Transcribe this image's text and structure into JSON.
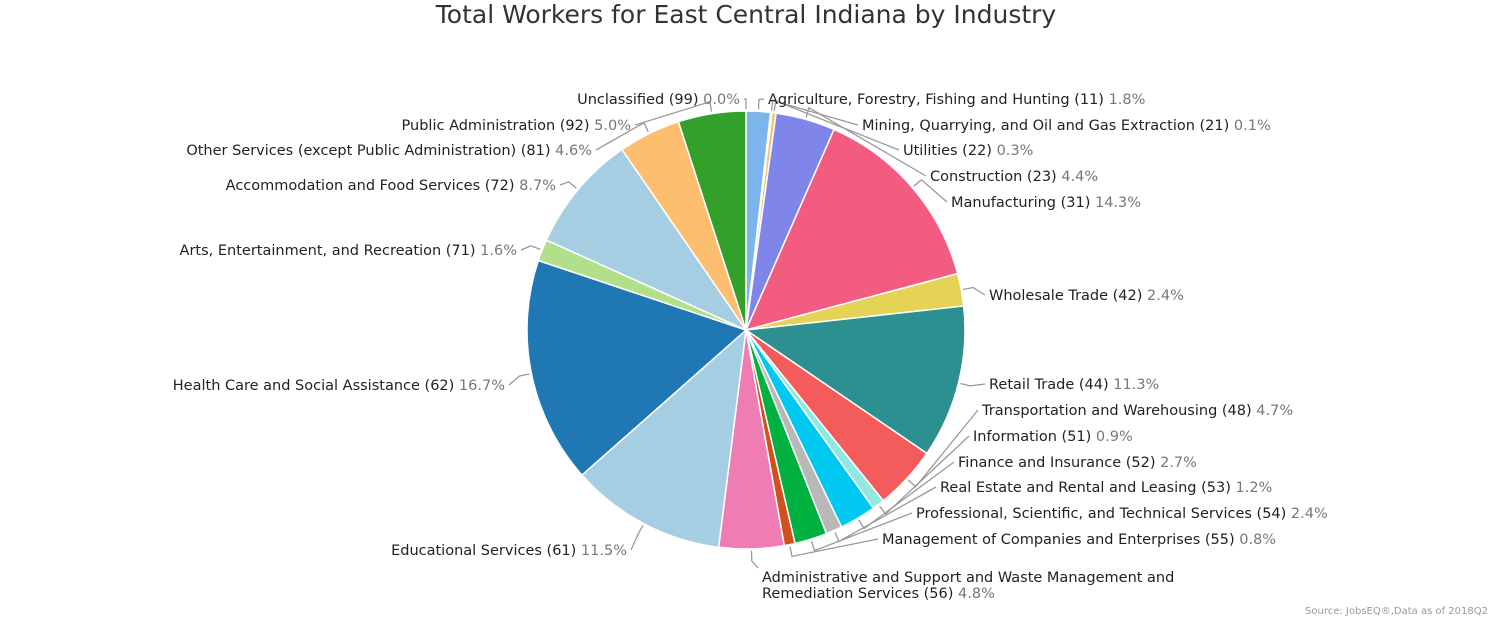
{
  "chart_data": {
    "type": "pie",
    "title": "Total Workers for East Central Indiana by Industry",
    "source": "Source: JobsEQ®,Data as of 2018Q2",
    "slices": [
      {
        "label": "Agriculture, Forestry, Fishing and Hunting (11)",
        "pct": "1.8%",
        "value": 1.8,
        "color": "#7cb5ec"
      },
      {
        "label": "Mining, Quarrying, and Oil and Gas Extraction (21)",
        "pct": "0.1%",
        "value": 0.1,
        "color": "#f7a35c"
      },
      {
        "label": "Utilities (22)",
        "pct": "0.3%",
        "value": 0.3,
        "color": "#f7c06d"
      },
      {
        "label": "Construction (23)",
        "pct": "4.4%",
        "value": 4.4,
        "color": "#8085e9"
      },
      {
        "label": "Manufacturing (31)",
        "pct": "14.3%",
        "value": 14.3,
        "color": "#f15c80"
      },
      {
        "label": "Wholesale Trade (42)",
        "pct": "2.4%",
        "value": 2.4,
        "color": "#e4d354"
      },
      {
        "label": "Retail Trade (44)",
        "pct": "11.3%",
        "value": 11.3,
        "color": "#2b908f"
      },
      {
        "label": "Transportation and Warehousing (48)",
        "pct": "4.7%",
        "value": 4.7,
        "color": "#f45b5b"
      },
      {
        "label": "Information (51)",
        "pct": "0.9%",
        "value": 0.9,
        "color": "#91e8e1"
      },
      {
        "label": "Finance and Insurance (52)",
        "pct": "2.7%",
        "value": 2.7,
        "color": "#00c8f0"
      },
      {
        "label": "Real Estate and Rental and Leasing (53)",
        "pct": "1.2%",
        "value": 1.2,
        "color": "#b8b8b8"
      },
      {
        "label": "Professional, Scientific, and Technical Services (54)",
        "pct": "2.4%",
        "value": 2.4,
        "color": "#00b140"
      },
      {
        "label": "Management of Companies and Enterprises (55)",
        "pct": "0.8%",
        "value": 0.8,
        "color": "#d2501e"
      },
      {
        "label": "Administrative and Support and Waste Management and Remediation Services (56)",
        "pct": "4.8%",
        "value": 4.8,
        "color": "#f07cb4"
      },
      {
        "label": "Educational Services (61)",
        "pct": "11.5%",
        "value": 11.5,
        "color": "#a6cee3"
      },
      {
        "label": "Health Care and Social Assistance (62)",
        "pct": "16.7%",
        "value": 16.7,
        "color": "#1f78b4"
      },
      {
        "label": "Arts, Entertainment, and Recreation (71)",
        "pct": "1.6%",
        "value": 1.6,
        "color": "#b2df8a"
      },
      {
        "label": "Accommodation and Food Services (72)",
        "pct": "8.7%",
        "value": 8.7,
        "color": "#a6cee3"
      },
      {
        "label": "Other Services (except Public Administration) (81)",
        "pct": "4.6%",
        "value": 4.6,
        "color": "#fdbf6f"
      },
      {
        "label": "Public Administration (92)",
        "pct": "5.0%",
        "value": 5.0,
        "color": "#33a02c"
      },
      {
        "label": "Unclassified (99)",
        "pct": "0.0%",
        "value": 0.0,
        "color": "#e31a1c"
      }
    ]
  }
}
